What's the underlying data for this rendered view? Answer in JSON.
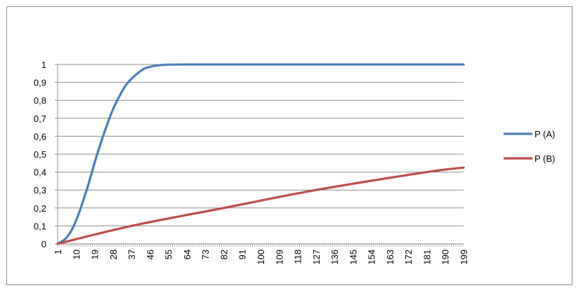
{
  "chart_data": {
    "type": "line",
    "title": "",
    "xlabel": "",
    "ylabel": "",
    "x_tick_labels": [
      "1",
      "10",
      "19",
      "28",
      "37",
      "46",
      "55",
      "64",
      "73",
      "82",
      "91",
      "100",
      "109",
      "118",
      "127",
      "136",
      "145",
      "154",
      "163",
      "172",
      "181",
      "190",
      "199"
    ],
    "x_range": [
      1,
      199
    ],
    "y_tick_labels": [
      "0",
      "0,1",
      "0,2",
      "0,3",
      "0,4",
      "0,5",
      "0,6",
      "0,7",
      "0,8",
      "0,9",
      "1"
    ],
    "ylim": [
      0,
      1
    ],
    "grid": "horizontal",
    "legend_position": "right",
    "series": [
      {
        "name": "P (A)",
        "color": "#4a7ebb",
        "points": [
          [
            1,
            0
          ],
          [
            5,
            0.03
          ],
          [
            8,
            0.08
          ],
          [
            10,
            0.13
          ],
          [
            12,
            0.19
          ],
          [
            14,
            0.26
          ],
          [
            16,
            0.33
          ],
          [
            19,
            0.45
          ],
          [
            22,
            0.56
          ],
          [
            25,
            0.66
          ],
          [
            28,
            0.75
          ],
          [
            31,
            0.82
          ],
          [
            34,
            0.88
          ],
          [
            37,
            0.92
          ],
          [
            40,
            0.95
          ],
          [
            43,
            0.975
          ],
          [
            46,
            0.987
          ],
          [
            50,
            0.995
          ],
          [
            55,
            0.999
          ],
          [
            64,
            1
          ],
          [
            73,
            1
          ],
          [
            100,
            1
          ],
          [
            150,
            1
          ],
          [
            199,
            1
          ]
        ]
      },
      {
        "name": "P (B)",
        "color": "#be4b48",
        "points": [
          [
            1,
            0
          ],
          [
            37,
            0.1
          ],
          [
            82,
            0.2
          ],
          [
            127,
            0.3
          ],
          [
            181,
            0.4
          ],
          [
            199,
            0.425
          ]
        ]
      }
    ]
  }
}
